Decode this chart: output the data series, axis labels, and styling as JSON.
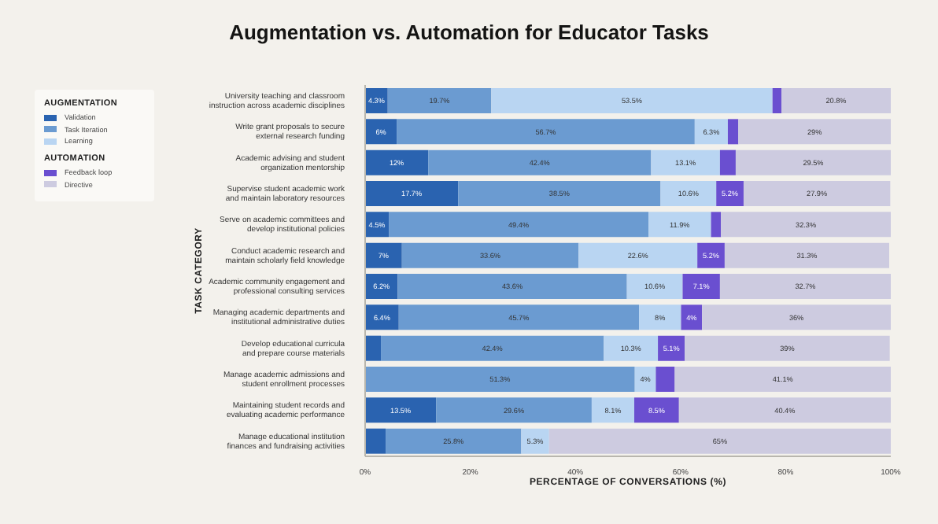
{
  "chart_data": {
    "type": "bar",
    "orientation": "horizontal",
    "stacked": true,
    "title": "Augmentation vs. Automation for Educator Tasks",
    "xlabel": "PERCENTAGE OF CONVERSATIONS (%)",
    "ylabel": "TASK CATEGORY",
    "annotations": [
      "AUGMENTATION",
      "AUTOMATION"
    ],
    "legend": "left",
    "categories": [
      "University teaching and classroom instruction across academic disciplines",
      "Write grant proposals to secure external research funding",
      "Academic advising and student organization mentorship",
      "Supervise student academic work and maintain laboratory resources",
      "Serve on academic committees and develop institutional policies",
      "Conduct academic research and maintain scholarly field knowledge",
      "Academic community engagement and professional consulting services",
      "Managing academic departments and institutional administrative duties",
      "Develop educational curricula and prepare course materials",
      "Manage academic admissions and student enrollment processes",
      "Maintaining student records and evaluating academic performance",
      "Manage educational institution finances and fundraising activities"
    ],
    "series": [
      {
        "name": "Validation",
        "color": "#2a63b0",
        "values": [
          4.3,
          6,
          12,
          17.7,
          4.5,
          7,
          6.2,
          6.4,
          3,
          null,
          13.5,
          3.9
        ],
        "value_labels": [
          "4.3%",
          "6%",
          "12%",
          "17.7%",
          "4.5%",
          "7%",
          "6.2%",
          "6.4%",
          null,
          null,
          "13.5%",
          null
        ]
      },
      {
        "name": "Task Iteration",
        "color": "#6b9bd1",
        "values": [
          19.7,
          56.7,
          42.4,
          38.5,
          49.4,
          33.6,
          43.6,
          45.7,
          42.4,
          51.3,
          29.6,
          25.8
        ],
        "value_labels": [
          "19.7%",
          "56.7%",
          "42.4%",
          "38.5%",
          "49.4%",
          "33.6%",
          "43.6%",
          "45.7%",
          "42.4%",
          "51.3%",
          "29.6%",
          "25.8%"
        ]
      },
      {
        "name": "Learning",
        "color": "#b9d5f2",
        "values": [
          53.5,
          6.3,
          13.1,
          10.6,
          11.9,
          22.6,
          10.6,
          8,
          10.3,
          4,
          8.1,
          5.3
        ],
        "value_labels": [
          "53.5%",
          "6.3%",
          "13.1%",
          "10.6%",
          "11.9%",
          "22.6%",
          "10.6%",
          "8%",
          "10.3%",
          "4%",
          "8.1%",
          "5.3%"
        ]
      },
      {
        "name": "Feedback loop",
        "color": "#6a4fd0",
        "values": [
          1.7,
          2,
          3,
          5.2,
          1.9,
          5.2,
          7.1,
          4,
          5.1,
          3.6,
          8.5,
          null
        ],
        "value_labels": [
          null,
          null,
          null,
          "5.2%",
          null,
          "5.2%",
          "7.1%",
          "4%",
          "5.1%",
          null,
          "8.5%",
          null
        ]
      },
      {
        "name": "Directive",
        "color": "#cdcbe0",
        "values": [
          20.8,
          29,
          29.5,
          27.9,
          32.3,
          31.3,
          32.7,
          36,
          39,
          41.1,
          40.4,
          65
        ],
        "value_labels": [
          "20.8%",
          "29%",
          "29.5%",
          "27.9%",
          "32.3%",
          "31.3%",
          "32.7%",
          "36%",
          "39%",
          "41.1%",
          "40.4%",
          "65%"
        ]
      }
    ],
    "xlim": [
      0,
      100
    ],
    "xticks": [
      {
        "value": 0,
        "label": "0%"
      },
      {
        "value": 20,
        "label": "20%"
      },
      {
        "value": 40,
        "label": "40%"
      },
      {
        "value": 60,
        "label": "60%"
      },
      {
        "value": 80,
        "label": "80%"
      },
      {
        "value": 100,
        "label": "100%"
      }
    ]
  }
}
